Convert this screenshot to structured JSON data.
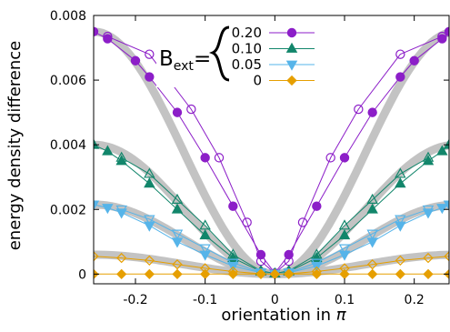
{
  "chart_data": {
    "type": "line",
    "xlabel": "orientation in",
    "xlabel_symbol": "π",
    "ylabel": "energy density difference",
    "xlim": [
      -0.26,
      0.25
    ],
    "ylim": [
      -0.0003,
      0.008
    ],
    "xticks": [
      -0.2,
      -0.1,
      0,
      0.1,
      0.2
    ],
    "xtick_labels": [
      "-0.2",
      "-0.1",
      "0",
      "0.1",
      "0.2"
    ],
    "yticks": [
      0,
      0.002,
      0.004,
      0.006,
      0.008
    ],
    "ytick_labels": [
      "0",
      "0.002",
      "0.004",
      "0.006",
      "0.008"
    ],
    "grid": false,
    "legend": {
      "placement": "top-center",
      "title_main": "B",
      "title_sub": "ext",
      "title_eq": "="
    },
    "series": [
      {
        "name": "0.20",
        "color": "#8c1ec8",
        "marker": "circle",
        "band_value": 0.0075,
        "filled_points": [
          [
            -0.26,
            0.0075
          ],
          [
            -0.24,
            0.00728
          ],
          [
            -0.2,
            0.0066
          ],
          [
            -0.18,
            0.0061
          ],
          [
            -0.14,
            0.005
          ],
          [
            -0.1,
            0.0036
          ],
          [
            -0.06,
            0.0021
          ],
          [
            -0.02,
            0.0006
          ],
          [
            0,
            3e-05
          ],
          [
            0.02,
            0.0006
          ],
          [
            0.06,
            0.0021
          ],
          [
            0.1,
            0.0036
          ],
          [
            0.14,
            0.005
          ],
          [
            0.18,
            0.0061
          ],
          [
            0.2,
            0.0066
          ],
          [
            0.24,
            0.00728
          ],
          [
            0.25,
            0.0075
          ]
        ],
        "open_points": [
          [
            -0.24,
            0.00735
          ],
          [
            -0.18,
            0.0068
          ],
          [
            -0.12,
            0.0051
          ],
          [
            -0.08,
            0.0036
          ],
          [
            -0.04,
            0.0016
          ],
          [
            -0.02,
            0.0004
          ],
          [
            0,
            3e-05
          ],
          [
            0.02,
            0.0004
          ],
          [
            0.04,
            0.0016
          ],
          [
            0.08,
            0.0036
          ],
          [
            0.12,
            0.0051
          ],
          [
            0.18,
            0.0068
          ],
          [
            0.24,
            0.00735
          ]
        ]
      },
      {
        "name": "0.10",
        "color": "#12866b",
        "marker": "triangle",
        "band_value": 0.004,
        "filled_points": [
          [
            -0.26,
            0.004
          ],
          [
            -0.24,
            0.0038
          ],
          [
            -0.22,
            0.0035
          ],
          [
            -0.18,
            0.0028
          ],
          [
            -0.14,
            0.002
          ],
          [
            -0.1,
            0.0012
          ],
          [
            -0.06,
            0.0005
          ],
          [
            -0.02,
            8e-05
          ],
          [
            0,
            2e-05
          ],
          [
            0.02,
            8e-05
          ],
          [
            0.06,
            0.0005
          ],
          [
            0.1,
            0.0012
          ],
          [
            0.14,
            0.002
          ],
          [
            0.18,
            0.0028
          ],
          [
            0.22,
            0.0035
          ],
          [
            0.24,
            0.0038
          ],
          [
            0.25,
            0.004
          ]
        ],
        "open_points": [
          [
            -0.22,
            0.0036
          ],
          [
            -0.18,
            0.0031
          ],
          [
            -0.14,
            0.0023
          ],
          [
            -0.1,
            0.0015
          ],
          [
            -0.06,
            0.0006
          ],
          [
            -0.02,
            0.0001
          ],
          [
            0,
            2e-05
          ],
          [
            0.02,
            0.0001
          ],
          [
            0.06,
            0.0006
          ],
          [
            0.1,
            0.0015
          ],
          [
            0.14,
            0.0023
          ],
          [
            0.18,
            0.0031
          ],
          [
            0.22,
            0.0036
          ]
        ]
      },
      {
        "name": "0.05",
        "color": "#56b4e9",
        "marker": "triangle-down",
        "band_value": 0.00215,
        "filled_points": [
          [
            -0.26,
            0.00215
          ],
          [
            -0.24,
            0.00205
          ],
          [
            -0.22,
            0.0019
          ],
          [
            -0.18,
            0.0015
          ],
          [
            -0.14,
            0.001
          ],
          [
            -0.1,
            0.0006
          ],
          [
            -0.06,
            0.00025
          ],
          [
            -0.02,
            4e-05
          ],
          [
            0,
            1e-05
          ],
          [
            0.02,
            4e-05
          ],
          [
            0.06,
            0.00025
          ],
          [
            0.1,
            0.0006
          ],
          [
            0.14,
            0.001
          ],
          [
            0.18,
            0.0015
          ],
          [
            0.22,
            0.0019
          ],
          [
            0.24,
            0.00205
          ],
          [
            0.25,
            0.00215
          ]
        ],
        "open_points": [
          [
            -0.22,
            0.002
          ],
          [
            -0.18,
            0.0017
          ],
          [
            -0.14,
            0.00125
          ],
          [
            -0.1,
            0.0008
          ],
          [
            -0.06,
            0.00035
          ],
          [
            -0.02,
            5e-05
          ],
          [
            0,
            1e-05
          ],
          [
            0.02,
            5e-05
          ],
          [
            0.06,
            0.00035
          ],
          [
            0.1,
            0.0008
          ],
          [
            0.14,
            0.00125
          ],
          [
            0.18,
            0.0017
          ],
          [
            0.22,
            0.002
          ]
        ]
      },
      {
        "name": "0",
        "color": "#e69f00",
        "marker": "diamond",
        "band_value": 0.0006,
        "filled_points": [
          [
            -0.26,
            0
          ],
          [
            -0.22,
            0
          ],
          [
            -0.18,
            0
          ],
          [
            -0.14,
            0
          ],
          [
            -0.1,
            0
          ],
          [
            -0.06,
            0
          ],
          [
            -0.02,
            0
          ],
          [
            0,
            0
          ],
          [
            0.02,
            0
          ],
          [
            0.06,
            0
          ],
          [
            0.1,
            0
          ],
          [
            0.14,
            0
          ],
          [
            0.18,
            0
          ],
          [
            0.22,
            0
          ],
          [
            0.25,
            0
          ]
        ],
        "open_points": [
          [
            -0.26,
            0.00055
          ],
          [
            -0.22,
            0.0005
          ],
          [
            -0.18,
            0.00042
          ],
          [
            -0.14,
            0.0003
          ],
          [
            -0.1,
            0.00018
          ],
          [
            -0.06,
            8e-05
          ],
          [
            -0.02,
            1e-05
          ],
          [
            0,
            0
          ],
          [
            0.02,
            1e-05
          ],
          [
            0.06,
            8e-05
          ],
          [
            0.1,
            0.00018
          ],
          [
            0.14,
            0.0003
          ],
          [
            0.18,
            0.00042
          ],
          [
            0.22,
            0.0005
          ],
          [
            0.25,
            0.00055
          ]
        ]
      }
    ]
  }
}
